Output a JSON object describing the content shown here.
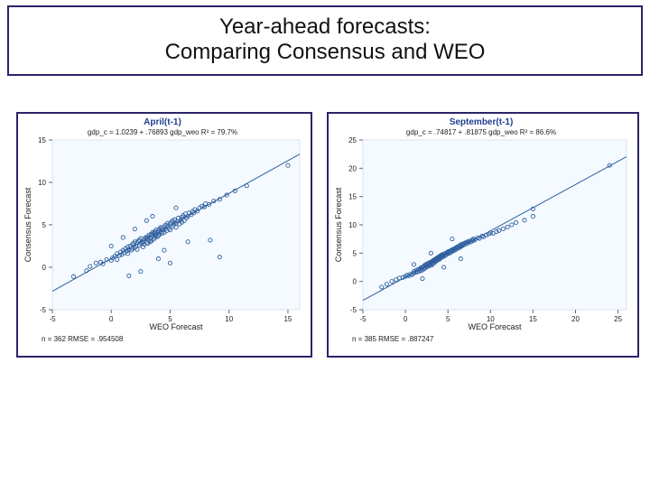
{
  "title": {
    "line1": "Year-ahead forecasts:",
    "line2": "Comparing Consensus and WEO"
  },
  "panels": {
    "left": {
      "type": "scatter",
      "title": "April(t-1)",
      "equation": "gdp_c = 1.0239 + .76893 gdp_weo    R² = 79.7%",
      "xlabel": "WEO Forecast",
      "ylabel": "Consensus Forecast",
      "xlim": [
        -5,
        16
      ],
      "ylim": [
        -5,
        15
      ],
      "xticks": [
        -5,
        0,
        5,
        10,
        15
      ],
      "yticks": [
        -5,
        0,
        5,
        10,
        15
      ],
      "footnote": "n = 362    RMSE = .954508",
      "background_color": "#f4faff",
      "grid_color": "#d8e6f3",
      "marker_color": "#2f5f9f",
      "marker_size": 2.1,
      "fit": {
        "intercept": 1.0239,
        "slope": 0.76893
      },
      "points": [
        [
          -3.2,
          -1.1
        ],
        [
          -2.1,
          -0.4
        ],
        [
          -1.8,
          0.1
        ],
        [
          -1.3,
          0.5
        ],
        [
          -0.9,
          0.6
        ],
        [
          -0.7,
          0.4
        ],
        [
          -0.4,
          0.9
        ],
        [
          0.0,
          0.8
        ],
        [
          0.1,
          1.1
        ],
        [
          0.3,
          1.3
        ],
        [
          0.5,
          0.9
        ],
        [
          0.5,
          1.6
        ],
        [
          0.7,
          1.4
        ],
        [
          0.8,
          1.8
        ],
        [
          0.9,
          1.5
        ],
        [
          1.0,
          2.0
        ],
        [
          1.1,
          1.7
        ],
        [
          1.2,
          2.2
        ],
        [
          1.3,
          1.9
        ],
        [
          1.4,
          2.4
        ],
        [
          1.4,
          1.6
        ],
        [
          1.5,
          2.1
        ],
        [
          1.6,
          2.5
        ],
        [
          1.7,
          2.0
        ],
        [
          1.8,
          2.7
        ],
        [
          1.8,
          2.2
        ],
        [
          1.9,
          2.8
        ],
        [
          2.0,
          2.3
        ],
        [
          2.0,
          3.0
        ],
        [
          2.1,
          2.5
        ],
        [
          2.2,
          2.9
        ],
        [
          2.2,
          2.1
        ],
        [
          2.3,
          3.1
        ],
        [
          2.4,
          2.6
        ],
        [
          2.4,
          3.2
        ],
        [
          2.5,
          2.8
        ],
        [
          2.5,
          3.4
        ],
        [
          2.6,
          2.9
        ],
        [
          2.7,
          3.0
        ],
        [
          2.7,
          2.4
        ],
        [
          2.8,
          3.3
        ],
        [
          2.8,
          2.7
        ],
        [
          2.9,
          3.5
        ],
        [
          3.0,
          2.9
        ],
        [
          3.0,
          3.4
        ],
        [
          3.1,
          3.6
        ],
        [
          3.1,
          2.8
        ],
        [
          3.2,
          3.2
        ],
        [
          3.2,
          3.8
        ],
        [
          3.3,
          3.0
        ],
        [
          3.3,
          3.5
        ],
        [
          3.4,
          3.9
        ],
        [
          3.4,
          3.1
        ],
        [
          3.5,
          3.7
        ],
        [
          3.5,
          4.1
        ],
        [
          3.6,
          3.3
        ],
        [
          3.6,
          4.0
        ],
        [
          3.7,
          3.5
        ],
        [
          3.7,
          4.2
        ],
        [
          3.8,
          3.8
        ],
        [
          3.8,
          4.4
        ],
        [
          3.9,
          3.6
        ],
        [
          3.9,
          4.1
        ],
        [
          4.0,
          4.3
        ],
        [
          4.0,
          3.7
        ],
        [
          4.1,
          4.5
        ],
        [
          4.1,
          3.9
        ],
        [
          4.2,
          4.2
        ],
        [
          4.2,
          4.7
        ],
        [
          4.3,
          4.0
        ],
        [
          4.3,
          4.6
        ],
        [
          4.4,
          4.4
        ],
        [
          4.5,
          4.1
        ],
        [
          4.5,
          4.8
        ],
        [
          4.6,
          4.5
        ],
        [
          4.6,
          5.0
        ],
        [
          4.7,
          4.3
        ],
        [
          4.8,
          4.9
        ],
        [
          4.8,
          5.2
        ],
        [
          4.9,
          4.6
        ],
        [
          5.0,
          5.1
        ],
        [
          5.0,
          4.4
        ],
        [
          5.1,
          5.3
        ],
        [
          5.2,
          4.8
        ],
        [
          5.2,
          5.5
        ],
        [
          5.3,
          5.0
        ],
        [
          5.4,
          5.6
        ],
        [
          5.5,
          5.2
        ],
        [
          5.5,
          4.7
        ],
        [
          5.6,
          5.4
        ],
        [
          5.7,
          5.8
        ],
        [
          5.8,
          5.1
        ],
        [
          5.9,
          5.6
        ],
        [
          6.0,
          5.9
        ],
        [
          6.0,
          5.3
        ],
        [
          6.1,
          6.1
        ],
        [
          6.2,
          5.5
        ],
        [
          6.3,
          6.3
        ],
        [
          6.4,
          5.8
        ],
        [
          6.5,
          6.0
        ],
        [
          6.6,
          6.4
        ],
        [
          6.8,
          6.2
        ],
        [
          6.9,
          6.6
        ],
        [
          7.0,
          6.4
        ],
        [
          7.1,
          6.8
        ],
        [
          7.3,
          6.6
        ],
        [
          7.5,
          7.0
        ],
        [
          7.7,
          7.2
        ],
        [
          7.9,
          7.1
        ],
        [
          8.0,
          7.5
        ],
        [
          8.3,
          7.4
        ],
        [
          8.7,
          7.8
        ],
        [
          9.2,
          8.0
        ],
        [
          9.8,
          8.5
        ],
        [
          10.5,
          9.0
        ],
        [
          11.5,
          9.6
        ],
        [
          15.0,
          12.0
        ],
        [
          8.4,
          3.2
        ],
        [
          9.2,
          1.2
        ],
        [
          5.0,
          0.5
        ],
        [
          2.0,
          4.5
        ],
        [
          2.5,
          -0.5
        ],
        [
          3.0,
          5.5
        ],
        [
          4.0,
          1.0
        ],
        [
          1.0,
          3.5
        ],
        [
          1.5,
          -1.0
        ],
        [
          0.0,
          2.5
        ],
        [
          6.5,
          3.0
        ],
        [
          3.5,
          6.0
        ],
        [
          4.5,
          2.0
        ],
        [
          5.5,
          7.0
        ]
      ]
    },
    "right": {
      "type": "scatter",
      "title": "September(t-1)",
      "equation": "gdp_c = .74817 + .81875 gdp_weo    R² = 86.6%",
      "xlabel": "WEO Forecast",
      "ylabel": "Consensus Forecast",
      "xlim": [
        -5,
        26
      ],
      "ylim": [
        -5,
        25
      ],
      "xticks": [
        -5,
        0,
        5,
        10,
        15,
        20,
        25
      ],
      "yticks": [
        -5,
        0,
        5,
        10,
        15,
        20,
        25
      ],
      "footnote": "n = 385    RMSE = .887247",
      "background_color": "#f4faff",
      "grid_color": "#d8e6f3",
      "marker_color": "#2f5f9f",
      "marker_size": 2.1,
      "fit": {
        "intercept": 0.74817,
        "slope": 0.81875
      },
      "points": [
        [
          -2.8,
          -1.0
        ],
        [
          -2.2,
          -0.5
        ],
        [
          -1.6,
          0.0
        ],
        [
          -1.1,
          0.3
        ],
        [
          -0.7,
          0.6
        ],
        [
          -0.3,
          0.7
        ],
        [
          0.0,
          0.9
        ],
        [
          0.2,
          1.1
        ],
        [
          0.4,
          1.0
        ],
        [
          0.6,
          1.3
        ],
        [
          0.8,
          1.2
        ],
        [
          1.0,
          1.5
        ],
        [
          1.0,
          1.8
        ],
        [
          1.2,
          1.6
        ],
        [
          1.3,
          2.0
        ],
        [
          1.4,
          1.7
        ],
        [
          1.5,
          2.1
        ],
        [
          1.6,
          1.8
        ],
        [
          1.7,
          2.2
        ],
        [
          1.8,
          2.4
        ],
        [
          1.8,
          1.9
        ],
        [
          1.9,
          2.3
        ],
        [
          2.0,
          2.5
        ],
        [
          2.0,
          2.0
        ],
        [
          2.1,
          2.6
        ],
        [
          2.2,
          2.2
        ],
        [
          2.2,
          2.8
        ],
        [
          2.3,
          2.4
        ],
        [
          2.4,
          2.7
        ],
        [
          2.4,
          3.0
        ],
        [
          2.5,
          2.5
        ],
        [
          2.5,
          2.9
        ],
        [
          2.6,
          3.1
        ],
        [
          2.7,
          2.7
        ],
        [
          2.7,
          3.2
        ],
        [
          2.8,
          2.9
        ],
        [
          2.8,
          3.3
        ],
        [
          2.9,
          3.0
        ],
        [
          3.0,
          3.4
        ],
        [
          3.0,
          2.8
        ],
        [
          3.1,
          3.2
        ],
        [
          3.1,
          3.5
        ],
        [
          3.2,
          3.0
        ],
        [
          3.2,
          3.6
        ],
        [
          3.3,
          3.3
        ],
        [
          3.3,
          3.7
        ],
        [
          3.4,
          3.5
        ],
        [
          3.4,
          3.8
        ],
        [
          3.5,
          3.4
        ],
        [
          3.5,
          3.9
        ],
        [
          3.6,
          3.6
        ],
        [
          3.6,
          4.0
        ],
        [
          3.7,
          3.7
        ],
        [
          3.7,
          4.1
        ],
        [
          3.8,
          3.8
        ],
        [
          3.8,
          4.2
        ],
        [
          3.9,
          4.0
        ],
        [
          3.9,
          4.3
        ],
        [
          4.0,
          3.9
        ],
        [
          4.0,
          4.4
        ],
        [
          4.1,
          4.1
        ],
        [
          4.1,
          4.5
        ],
        [
          4.2,
          4.2
        ],
        [
          4.2,
          4.6
        ],
        [
          4.3,
          4.3
        ],
        [
          4.3,
          4.7
        ],
        [
          4.4,
          4.5
        ],
        [
          4.5,
          4.4
        ],
        [
          4.5,
          4.8
        ],
        [
          4.6,
          4.9
        ],
        [
          4.7,
          4.6
        ],
        [
          4.8,
          5.0
        ],
        [
          4.8,
          4.7
        ],
        [
          4.9,
          5.1
        ],
        [
          5.0,
          4.9
        ],
        [
          5.0,
          5.2
        ],
        [
          5.1,
          5.3
        ],
        [
          5.2,
          5.0
        ],
        [
          5.3,
          5.4
        ],
        [
          5.3,
          5.1
        ],
        [
          5.4,
          5.5
        ],
        [
          5.5,
          5.3
        ],
        [
          5.5,
          5.6
        ],
        [
          5.6,
          5.4
        ],
        [
          5.7,
          5.7
        ],
        [
          5.8,
          5.5
        ],
        [
          5.8,
          5.8
        ],
        [
          5.9,
          5.9
        ],
        [
          6.0,
          5.7
        ],
        [
          6.0,
          6.0
        ],
        [
          6.1,
          6.1
        ],
        [
          6.2,
          5.9
        ],
        [
          6.3,
          6.2
        ],
        [
          6.4,
          6.0
        ],
        [
          6.5,
          6.3
        ],
        [
          6.5,
          6.5
        ],
        [
          6.6,
          6.2
        ],
        [
          6.7,
          6.6
        ],
        [
          6.8,
          6.4
        ],
        [
          6.9,
          6.7
        ],
        [
          7.0,
          6.8
        ],
        [
          7.1,
          6.6
        ],
        [
          7.2,
          6.9
        ],
        [
          7.3,
          7.0
        ],
        [
          7.4,
          6.8
        ],
        [
          7.5,
          7.1
        ],
        [
          7.7,
          7.0
        ],
        [
          7.8,
          7.3
        ],
        [
          8.0,
          7.2
        ],
        [
          8.0,
          7.5
        ],
        [
          8.2,
          7.4
        ],
        [
          8.5,
          7.7
        ],
        [
          8.7,
          7.6
        ],
        [
          9.0,
          8.0
        ],
        [
          9.2,
          7.9
        ],
        [
          9.5,
          8.2
        ],
        [
          9.8,
          8.4
        ],
        [
          10.0,
          8.6
        ],
        [
          10.3,
          8.5
        ],
        [
          10.7,
          8.8
        ],
        [
          11.0,
          9.0
        ],
        [
          11.5,
          9.3
        ],
        [
          12.0,
          9.6
        ],
        [
          12.5,
          10.0
        ],
        [
          13.0,
          10.4
        ],
        [
          14.0,
          10.8
        ],
        [
          15.0,
          11.5
        ],
        [
          15.0,
          12.8
        ],
        [
          24.0,
          20.5
        ],
        [
          1.0,
          3.0
        ],
        [
          2.0,
          0.5
        ],
        [
          3.0,
          5.0
        ],
        [
          4.5,
          2.5
        ],
        [
          5.5,
          7.5
        ],
        [
          6.5,
          4.0
        ]
      ]
    }
  }
}
